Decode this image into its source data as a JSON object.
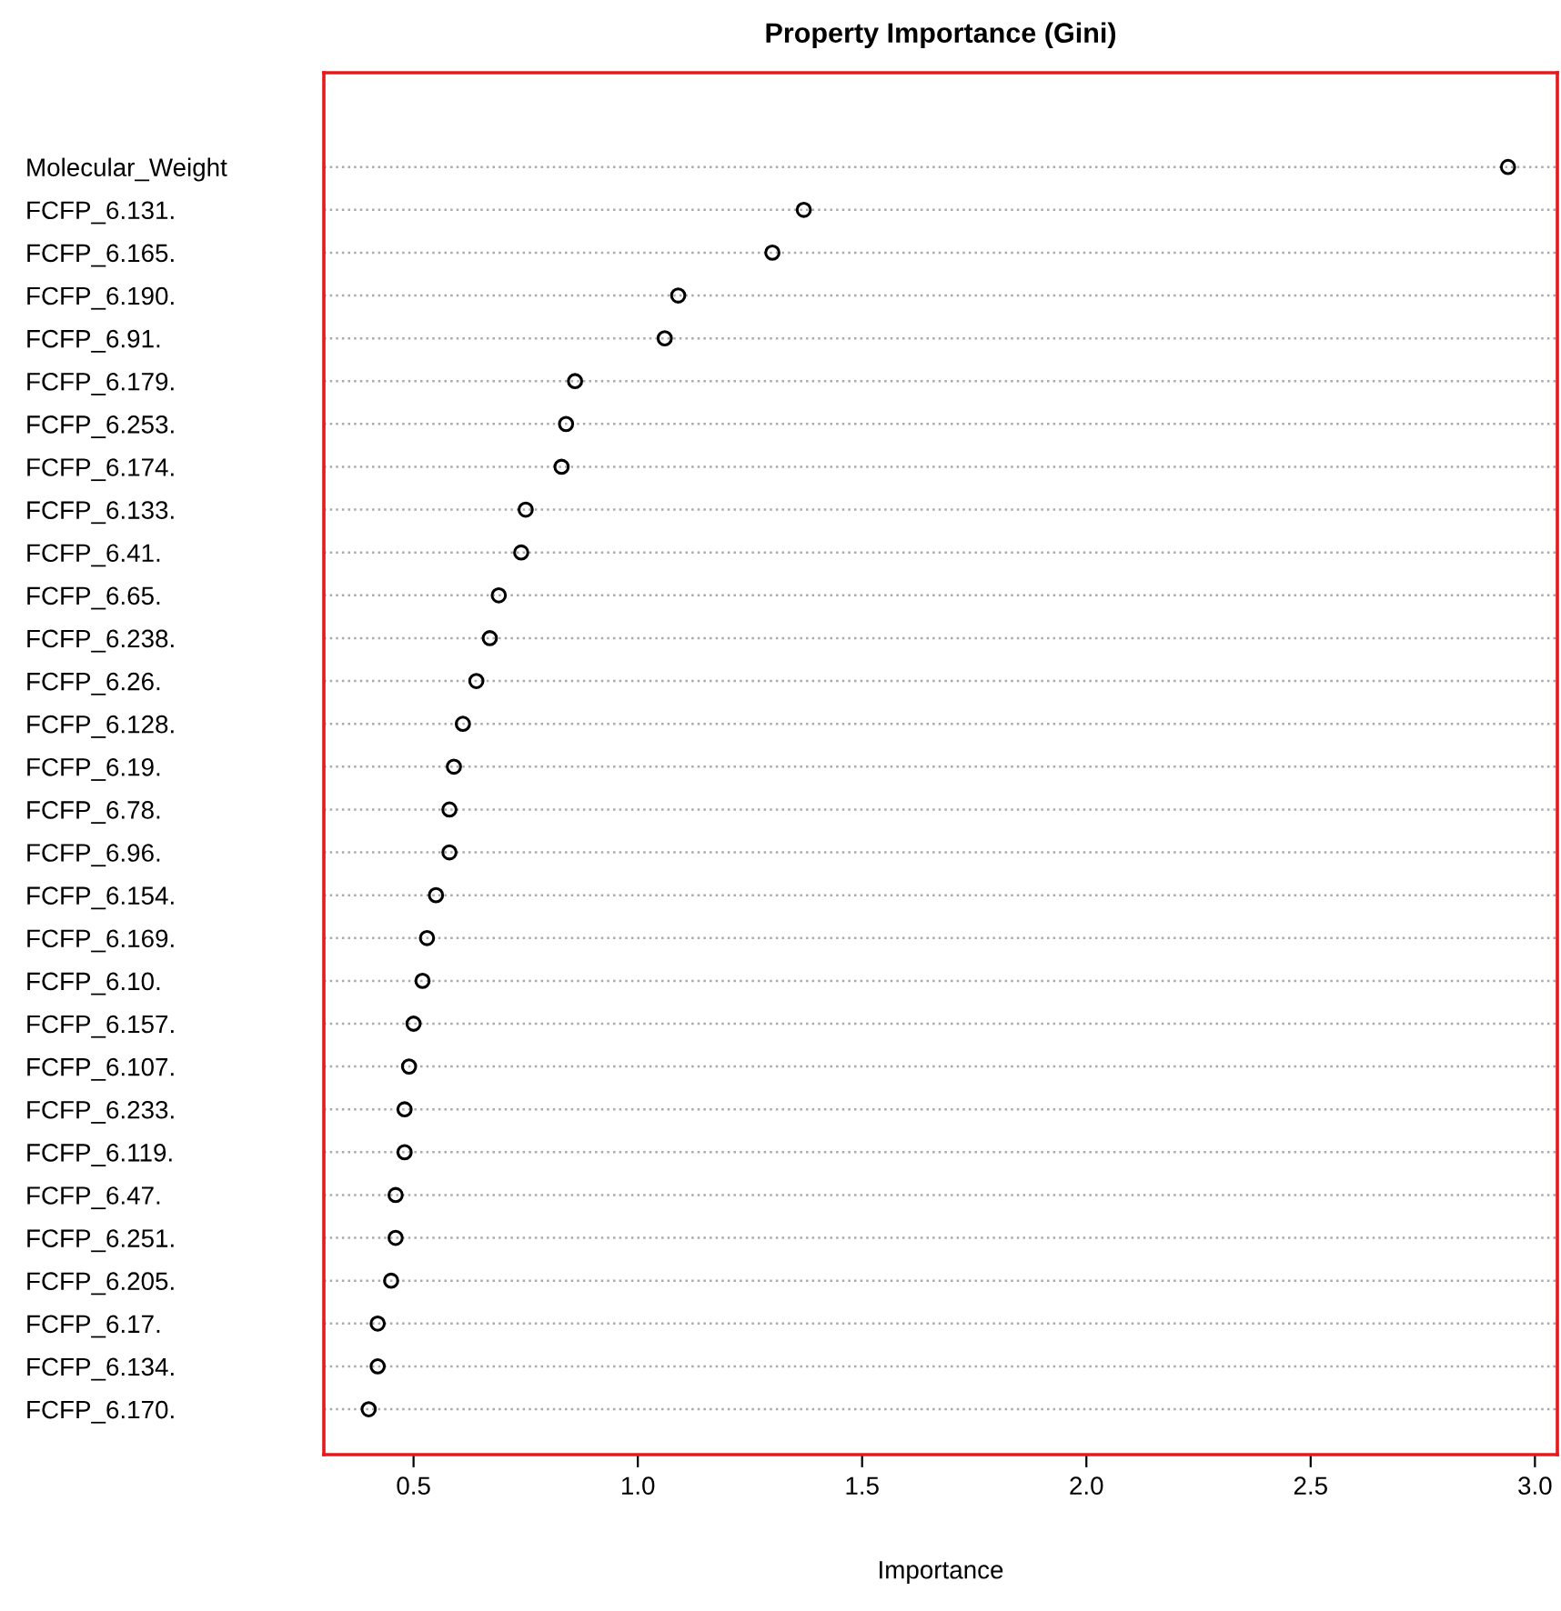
{
  "chart_data": {
    "type": "scatter",
    "title": "Property Importance (Gini)",
    "xlabel": "Importance",
    "categories": [
      "Molecular_Weight",
      "FCFP_6.131.",
      "FCFP_6.165.",
      "FCFP_6.190.",
      "FCFP_6.91.",
      "FCFP_6.179.",
      "FCFP_6.253.",
      "FCFP_6.174.",
      "FCFP_6.133.",
      "FCFP_6.41.",
      "FCFP_6.65.",
      "FCFP_6.238.",
      "FCFP_6.26.",
      "FCFP_6.128.",
      "FCFP_6.19.",
      "FCFP_6.78.",
      "FCFP_6.96.",
      "FCFP_6.154.",
      "FCFP_6.169.",
      "FCFP_6.10.",
      "FCFP_6.157.",
      "FCFP_6.107.",
      "FCFP_6.233.",
      "FCFP_6.119.",
      "FCFP_6.47.",
      "FCFP_6.251.",
      "FCFP_6.205.",
      "FCFP_6.17.",
      "FCFP_6.134.",
      "FCFP_6.170."
    ],
    "values": [
      2.94,
      1.37,
      1.3,
      1.09,
      1.06,
      0.86,
      0.84,
      0.83,
      0.75,
      0.74,
      0.69,
      0.67,
      0.64,
      0.61,
      0.59,
      0.58,
      0.58,
      0.55,
      0.53,
      0.52,
      0.5,
      0.49,
      0.48,
      0.48,
      0.46,
      0.46,
      0.45,
      0.42,
      0.42,
      0.4
    ],
    "color": "#000000",
    "orientation": "horizontal",
    "marker": "circle",
    "xlim": [
      0.3,
      3.05
    ],
    "xticks": [
      {
        "value": 0.5,
        "label": "0.5"
      },
      {
        "value": 1,
        "label": "1.0"
      },
      {
        "value": 1.5,
        "label": "1.5"
      },
      {
        "value": 2,
        "label": "2.0"
      },
      {
        "value": 2.5,
        "label": "2.5"
      },
      {
        "value": 3,
        "label": "3.0"
      }
    ],
    "grid": "y",
    "line_style": "dotted"
  }
}
